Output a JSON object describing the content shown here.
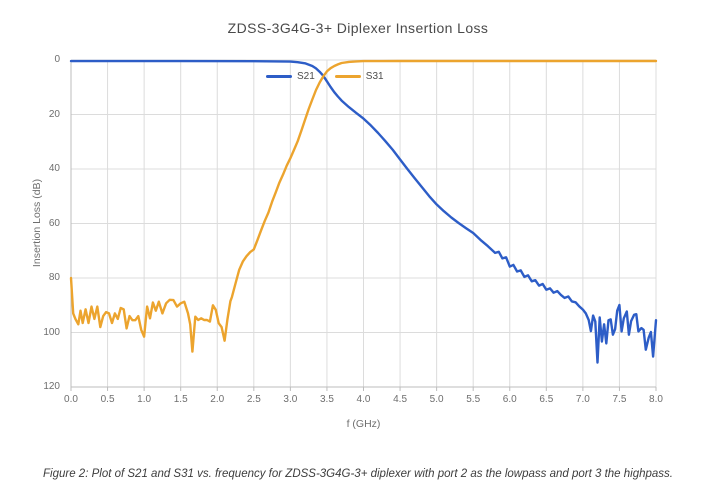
{
  "caption": "Figure 2: Plot of S21 and S31 vs. frequency for ZDSS-3G4G-3+ diplexer with port 2 as the lowpass and port 3 the highpass.",
  "colors": {
    "s21_blue": "#2d5dc7",
    "s31_orange": "#eca42e",
    "gridline": "#dcdcdc",
    "axis_line": "#bdbdbd",
    "tick_text": "#6e6e6e",
    "title_text": "#4a4a4a"
  },
  "chart_data": {
    "type": "line",
    "title": "ZDSS-3G4G-3+ Diplexer Insertion Loss",
    "xlabel": "f (GHz)",
    "ylabel": "Insertion Loss (dB)",
    "xlim": [
      0,
      8
    ],
    "ylim": [
      0,
      120
    ],
    "y_axis_inverted_loss_down": true,
    "grid": true,
    "legend_position": "top-inside",
    "x_ticks": [
      {
        "v": 0,
        "label": "0.0"
      },
      {
        "v": 0.5,
        "label": "0.5"
      },
      {
        "v": 1,
        "label": "1.0"
      },
      {
        "v": 1.5,
        "label": "1.5"
      },
      {
        "v": 2,
        "label": "2.0"
      },
      {
        "v": 2.5,
        "label": "2.5"
      },
      {
        "v": 3,
        "label": "3.0"
      },
      {
        "v": 3.5,
        "label": "3.5"
      },
      {
        "v": 4,
        "label": "4.0"
      },
      {
        "v": 4.5,
        "label": "4.5"
      },
      {
        "v": 5,
        "label": "5.0"
      },
      {
        "v": 5.5,
        "label": "5.5"
      },
      {
        "v": 6,
        "label": "6.0"
      },
      {
        "v": 6.5,
        "label": "6.5"
      },
      {
        "v": 7,
        "label": "7.0"
      },
      {
        "v": 7.5,
        "label": "7.5"
      },
      {
        "v": 8,
        "label": "8.0"
      }
    ],
    "y_ticks": [
      {
        "v": 0,
        "label": "0"
      },
      {
        "v": 20,
        "label": "20"
      },
      {
        "v": 40,
        "label": "40"
      },
      {
        "v": 60,
        "label": "60"
      },
      {
        "v": 80,
        "label": "80"
      },
      {
        "v": 100,
        "label": "100"
      },
      {
        "v": 120,
        "label": "120"
      }
    ],
    "series": [
      {
        "name": "S21",
        "color": "#2d5dc7",
        "points": [
          [
            0,
            0.4
          ],
          [
            1.5,
            0.4
          ],
          [
            2.5,
            0.45
          ],
          [
            3,
            0.6
          ],
          [
            3.1,
            0.8
          ],
          [
            3.2,
            1.2
          ],
          [
            3.3,
            2.2
          ],
          [
            3.35,
            3.1
          ],
          [
            3.4,
            4.3
          ],
          [
            3.45,
            5.8
          ],
          [
            3.5,
            7.8
          ],
          [
            3.55,
            9.9
          ],
          [
            3.6,
            11.8
          ],
          [
            3.65,
            13.4
          ],
          [
            3.7,
            14.9
          ],
          [
            3.8,
            17.3
          ],
          [
            3.9,
            19.4
          ],
          [
            4,
            21.5
          ],
          [
            4.1,
            24
          ],
          [
            4.2,
            26.8
          ],
          [
            4.3,
            29.8
          ],
          [
            4.4,
            33
          ],
          [
            4.5,
            36.5
          ],
          [
            4.6,
            40
          ],
          [
            4.7,
            43.4
          ],
          [
            4.8,
            46.7
          ],
          [
            4.9,
            50
          ],
          [
            5,
            53
          ],
          [
            5.1,
            55.5
          ],
          [
            5.2,
            57.8
          ],
          [
            5.3,
            59.8
          ],
          [
            5.4,
            61.7
          ],
          [
            5.5,
            63.5
          ],
          [
            5.6,
            66
          ],
          [
            5.7,
            68.3
          ],
          [
            5.8,
            70.8
          ],
          [
            5.85,
            70.4
          ],
          [
            5.9,
            72.8
          ],
          [
            5.95,
            72.4
          ],
          [
            6,
            75.8
          ],
          [
            6.05,
            75.2
          ],
          [
            6.1,
            77.6
          ],
          [
            6.15,
            77.2
          ],
          [
            6.2,
            79.6
          ],
          [
            6.25,
            79
          ],
          [
            6.3,
            81.2
          ],
          [
            6.35,
            80.8
          ],
          [
            6.4,
            82.8
          ],
          [
            6.45,
            82.2
          ],
          [
            6.5,
            84.3
          ],
          [
            6.55,
            83.8
          ],
          [
            6.6,
            85.4
          ],
          [
            6.65,
            84.8
          ],
          [
            6.7,
            86.2
          ],
          [
            6.75,
            87.3
          ],
          [
            6.8,
            86.8
          ],
          [
            6.85,
            88.6
          ],
          [
            6.9,
            88.9
          ],
          [
            6.95,
            90.4
          ],
          [
            7,
            91.6
          ],
          [
            7.04,
            93
          ],
          [
            7.08,
            95.4
          ],
          [
            7.11,
            99.5
          ],
          [
            7.14,
            93.8
          ],
          [
            7.17,
            96
          ],
          [
            7.2,
            111
          ],
          [
            7.23,
            94.5
          ],
          [
            7.26,
            103.3
          ],
          [
            7.29,
            97
          ],
          [
            7.32,
            104
          ],
          [
            7.35,
            95.5
          ],
          [
            7.38,
            95.2
          ],
          [
            7.41,
            100.8
          ],
          [
            7.44,
            98.8
          ],
          [
            7.47,
            92
          ],
          [
            7.5,
            89.9
          ],
          [
            7.53,
            99.6
          ],
          [
            7.56,
            94.8
          ],
          [
            7.6,
            92.3
          ],
          [
            7.63,
            100.8
          ],
          [
            7.66,
            95.8
          ],
          [
            7.7,
            93.5
          ],
          [
            7.73,
            93.3
          ],
          [
            7.76,
            99.6
          ],
          [
            7.8,
            98.4
          ],
          [
            7.83,
            99
          ],
          [
            7.86,
            106.3
          ],
          [
            7.9,
            101.9
          ],
          [
            7.93,
            99.8
          ],
          [
            7.96,
            108.8
          ],
          [
            8,
            95.5
          ]
        ]
      },
      {
        "name": "S31",
        "color": "#eca42e",
        "points": [
          [
            0,
            80
          ],
          [
            0.03,
            93
          ],
          [
            0.06,
            95
          ],
          [
            0.1,
            97
          ],
          [
            0.13,
            92
          ],
          [
            0.16,
            96.5
          ],
          [
            0.2,
            91.5
          ],
          [
            0.24,
            96.5
          ],
          [
            0.28,
            90.5
          ],
          [
            0.32,
            95
          ],
          [
            0.36,
            90.5
          ],
          [
            0.4,
            98
          ],
          [
            0.44,
            94
          ],
          [
            0.48,
            92.5
          ],
          [
            0.52,
            93
          ],
          [
            0.56,
            96.5
          ],
          [
            0.6,
            93
          ],
          [
            0.64,
            95
          ],
          [
            0.68,
            91
          ],
          [
            0.72,
            91.5
          ],
          [
            0.76,
            98.5
          ],
          [
            0.8,
            94
          ],
          [
            0.84,
            95.5
          ],
          [
            0.88,
            95.5
          ],
          [
            0.92,
            94
          ],
          [
            0.96,
            99
          ],
          [
            1,
            101.5
          ],
          [
            1.04,
            90.5
          ],
          [
            1.08,
            94.8
          ],
          [
            1.12,
            89
          ],
          [
            1.16,
            92
          ],
          [
            1.2,
            88.7
          ],
          [
            1.25,
            93
          ],
          [
            1.3,
            89.3
          ],
          [
            1.35,
            88
          ],
          [
            1.4,
            88.1
          ],
          [
            1.45,
            90.5
          ],
          [
            1.5,
            89.3
          ],
          [
            1.55,
            88.7
          ],
          [
            1.6,
            93
          ],
          [
            1.63,
            97
          ],
          [
            1.66,
            107
          ],
          [
            1.7,
            94.2
          ],
          [
            1.74,
            95.4
          ],
          [
            1.78,
            94.8
          ],
          [
            1.82,
            95.4
          ],
          [
            1.86,
            95.4
          ],
          [
            1.9,
            96
          ],
          [
            1.94,
            90
          ],
          [
            1.98,
            91.7
          ],
          [
            2.02,
            96.6
          ],
          [
            2.06,
            98
          ],
          [
            2.1,
            103
          ],
          [
            2.14,
            95
          ],
          [
            2.18,
            88.5
          ],
          [
            2.2,
            87
          ],
          [
            2.25,
            82
          ],
          [
            2.3,
            77
          ],
          [
            2.35,
            74
          ],
          [
            2.4,
            72
          ],
          [
            2.45,
            70.5
          ],
          [
            2.5,
            69.5
          ],
          [
            2.55,
            66
          ],
          [
            2.6,
            62.5
          ],
          [
            2.65,
            59
          ],
          [
            2.7,
            56
          ],
          [
            2.75,
            52
          ],
          [
            2.8,
            48.5
          ],
          [
            2.85,
            45
          ],
          [
            2.9,
            42
          ],
          [
            2.95,
            38.8
          ],
          [
            3,
            36
          ],
          [
            3.05,
            33
          ],
          [
            3.1,
            29.8
          ],
          [
            3.15,
            26
          ],
          [
            3.2,
            22
          ],
          [
            3.25,
            18
          ],
          [
            3.3,
            14.5
          ],
          [
            3.35,
            11
          ],
          [
            3.4,
            8.3
          ],
          [
            3.45,
            6
          ],
          [
            3.5,
            4.2
          ],
          [
            3.55,
            3
          ],
          [
            3.6,
            2.2
          ],
          [
            3.65,
            1.6
          ],
          [
            3.7,
            1.1
          ],
          [
            3.8,
            0.7
          ],
          [
            3.9,
            0.5
          ],
          [
            4,
            0.4
          ],
          [
            4.5,
            0.35
          ],
          [
            5,
            0.35
          ],
          [
            5.5,
            0.35
          ],
          [
            6,
            0.35
          ],
          [
            6.5,
            0.35
          ],
          [
            7,
            0.35
          ],
          [
            7.5,
            0.35
          ],
          [
            8,
            0.35
          ]
        ]
      }
    ]
  }
}
